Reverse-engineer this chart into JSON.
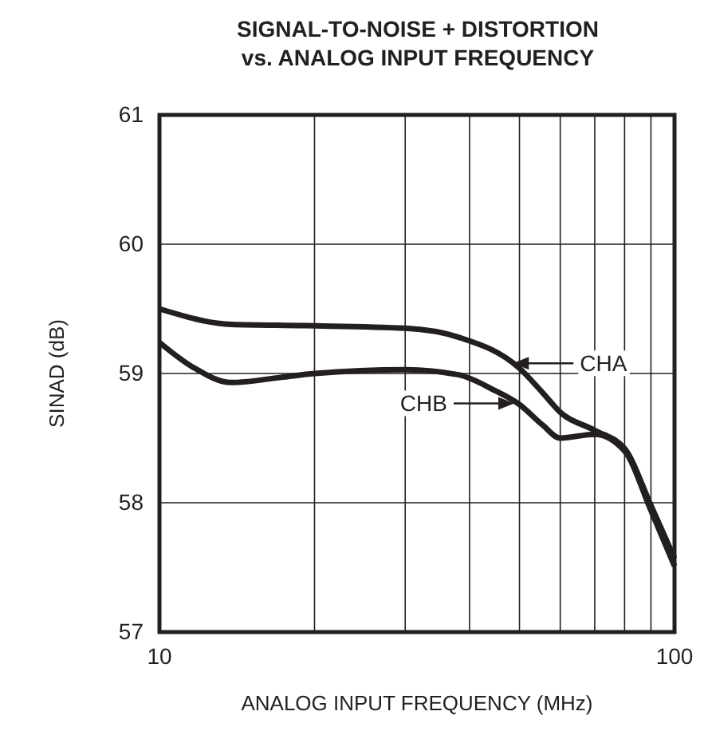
{
  "chart_data": {
    "type": "line",
    "title": "SIGNAL-TO-NOISE + DISTORTION\nvs. ANALOG INPUT FREQUENCY",
    "xlabel": "ANALOG INPUT FREQUENCY (MHz)",
    "ylabel": "SINAD (dB)",
    "log": "x",
    "grid": true,
    "line_style": "solid",
    "marker": "none",
    "xlim": [
      10,
      100
    ],
    "xticks": [
      10,
      {
        "value": 20,
        "label": null
      },
      {
        "value": 30,
        "label": null
      },
      {
        "value": 40,
        "label": null
      },
      {
        "value": 50,
        "label": null
      },
      {
        "value": 60,
        "label": null
      },
      {
        "value": 70,
        "label": null
      },
      {
        "value": 80,
        "label": null
      },
      {
        "value": 90,
        "label": null
      },
      100
    ],
    "ylim": [
      57,
      61
    ],
    "yticks": [
      57,
      58,
      59,
      60,
      61
    ],
    "series": [
      {
        "name": "CHA",
        "color": "#231f20",
        "x": [
          10,
          13.8,
          19.1,
          30,
          38.1,
          50,
          55.5,
          60,
          70,
          80,
          90,
          100
        ],
        "values": [
          59.5,
          59.38,
          59.37,
          59.35,
          59.28,
          59.04,
          58.85,
          58.7,
          58.56,
          58.42,
          57.98,
          57.57
        ]
      },
      {
        "name": "CHB",
        "color": "#231f20",
        "x": [
          10,
          11.6,
          13.8,
          17.2,
          20,
          30,
          38.1,
          44.7,
          50,
          55.5,
          60,
          70,
          80,
          90,
          100
        ],
        "values": [
          59.24,
          59.05,
          58.93,
          58.97,
          59.0,
          59.03,
          58.99,
          58.87,
          58.76,
          58.6,
          58.5,
          58.53,
          58.4,
          57.94,
          57.51
        ]
      }
    ]
  }
}
